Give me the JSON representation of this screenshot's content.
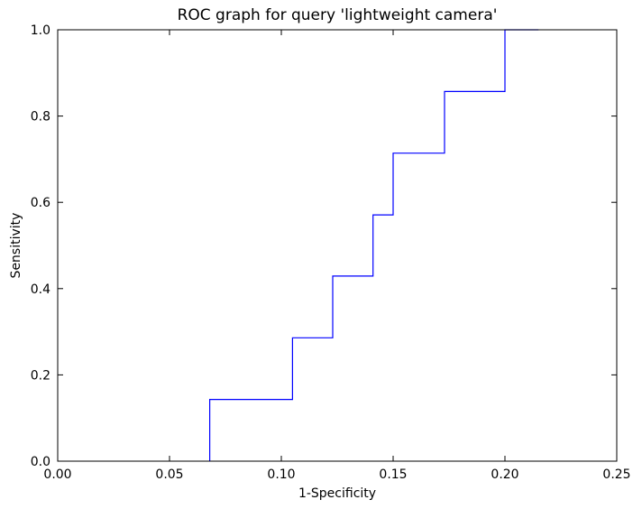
{
  "chart_data": {
    "type": "line",
    "title": "ROC graph for query 'lightweight camera'",
    "xlabel": "1-Specificity",
    "ylabel": "Sensitivity",
    "xlim": [
      0.0,
      0.25
    ],
    "ylim": [
      0.0,
      1.0
    ],
    "x_ticks": [
      "0.00",
      "0.05",
      "0.10",
      "0.15",
      "0.20",
      "0.25"
    ],
    "y_ticks": [
      "0.0",
      "0.2",
      "0.4",
      "0.6",
      "0.8",
      "1.0"
    ],
    "grid": false,
    "line_color": "#0000ff",
    "series": [
      {
        "x": [
          0.068,
          0.068,
          0.105,
          0.105,
          0.123,
          0.123,
          0.141,
          0.141,
          0.15,
          0.15,
          0.173,
          0.173,
          0.2,
          0.2,
          0.215
        ],
        "y": [
          0.0,
          0.143,
          0.143,
          0.286,
          0.286,
          0.429,
          0.429,
          0.571,
          0.571,
          0.714,
          0.714,
          0.857,
          0.857,
          1.0,
          1.0
        ]
      }
    ]
  }
}
